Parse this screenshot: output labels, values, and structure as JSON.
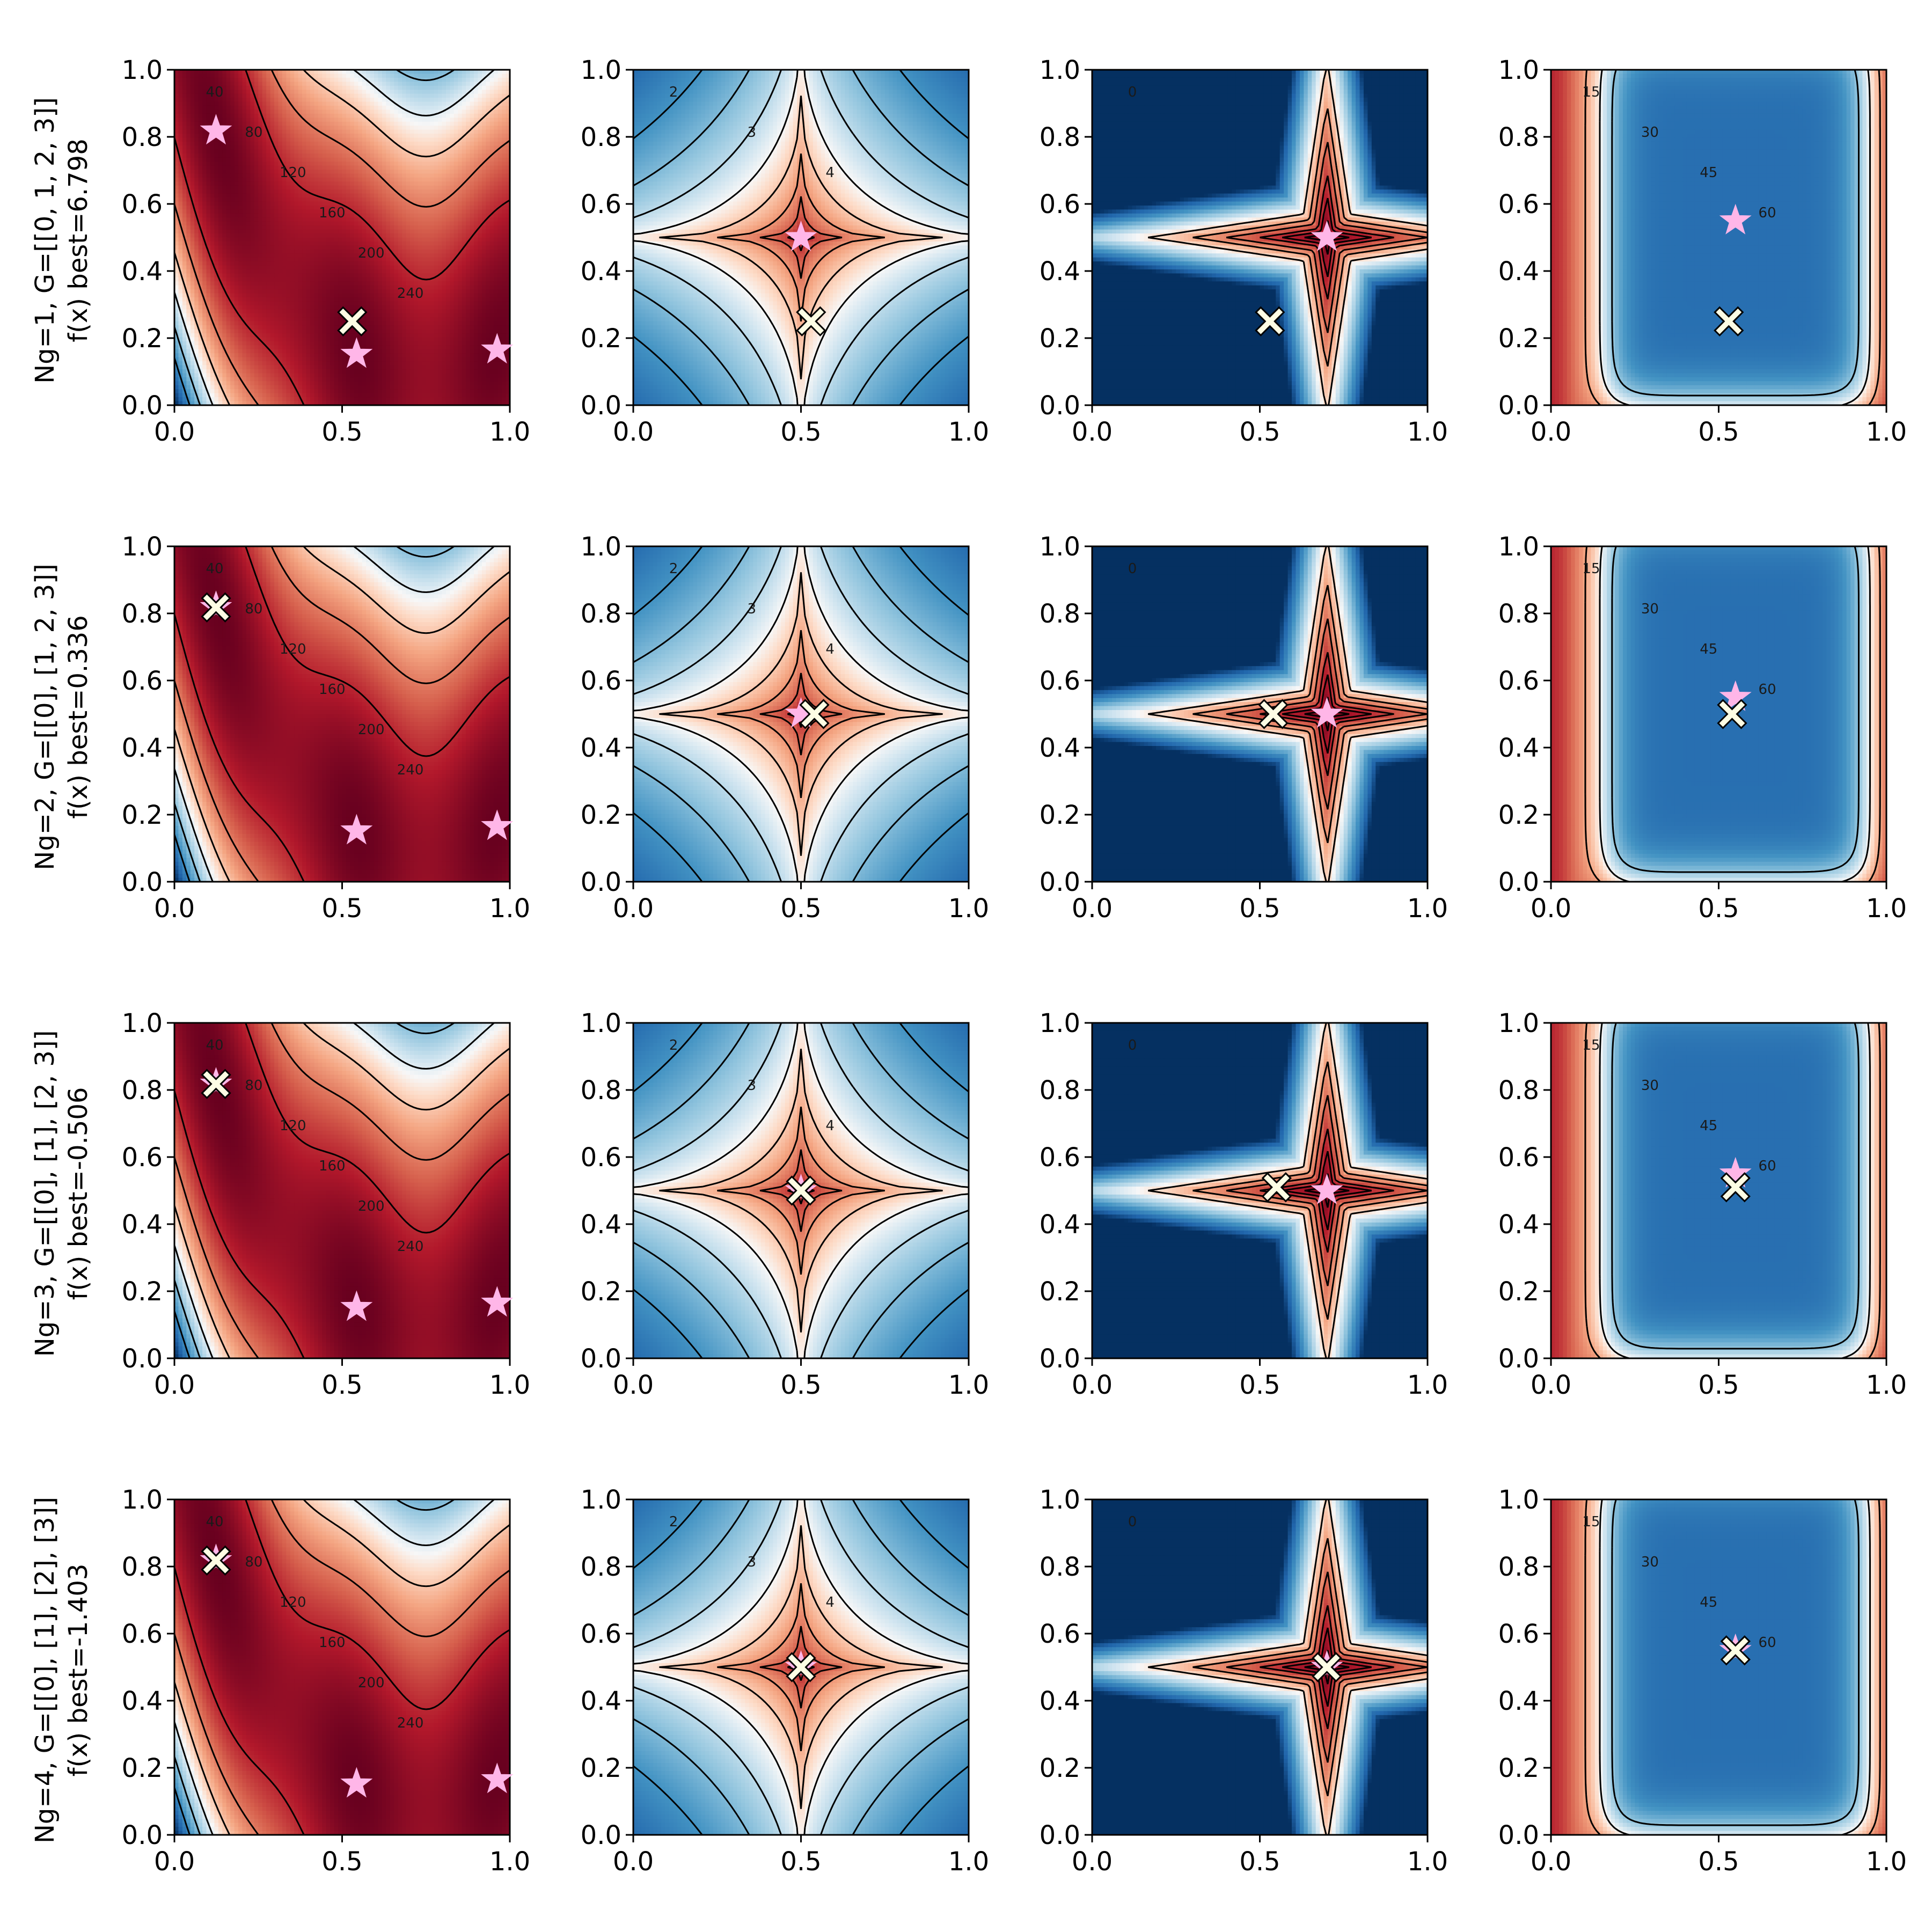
{
  "figure": {
    "row_labels": [
      {
        "line1": "Ng=1, G=[[0, 1, 2, 3]]",
        "line2": "f(x) best=6.798"
      },
      {
        "line1": "Ng=2, G=[[0], [1, 2, 3]]",
        "line2": "f(x) best=0.336"
      },
      {
        "line1": "Ng=3, G=[[0], [1], [2, 3]]",
        "line2": "f(x) best=-0.506"
      },
      {
        "line1": "Ng=4, G=[[0], [1], [2], [3]]",
        "line2": "f(x) best=-1.403"
      }
    ],
    "colors": {
      "low_value": "#053061",
      "mid_value": "#f7f7f7",
      "high_value": "#67001f",
      "contour_line": "#000000",
      "star_marker": "#ffb6e8",
      "cross_marker": "#fdfde4",
      "cross_edge": "#000000"
    },
    "colormap": "RdBu (reversed)",
    "marker_names": {
      "optimum": "star-icon",
      "best_found": "cross-icon"
    }
  },
  "chart_data": [
    {
      "type": "heatmap",
      "row": 1,
      "col": 1,
      "function": "f1",
      "xlim": [
        0,
        1
      ],
      "ylim": [
        0,
        1
      ],
      "x_ticks": [
        "0.0",
        "0.5",
        "1.0"
      ],
      "y_ticks": [
        "0.0",
        "0.2",
        "0.4",
        "0.6",
        "0.8",
        "1.0"
      ],
      "contour_labels": [
        "40",
        "80",
        "120",
        "160",
        "200",
        "240"
      ],
      "optima": [
        {
          "x": 0.124,
          "y": 0.818
        },
        {
          "x": 0.543,
          "y": 0.152
        },
        {
          "x": 0.962,
          "y": 0.165
        }
      ],
      "best": {
        "x": 0.53,
        "y": 0.25
      }
    },
    {
      "type": "heatmap",
      "row": 1,
      "col": 2,
      "function": "f2",
      "xlim": [
        0,
        1
      ],
      "ylim": [
        0,
        1
      ],
      "x_ticks": [
        "0.0",
        "0.5",
        "1.0"
      ],
      "y_ticks": [
        "0.0",
        "0.2",
        "0.4",
        "0.6",
        "0.8",
        "1.0"
      ],
      "contour_labels": [
        "2",
        "3",
        "4"
      ],
      "optima": [
        {
          "x": 0.5,
          "y": 0.5
        }
      ],
      "best": {
        "x": 0.53,
        "y": 0.25
      }
    },
    {
      "type": "heatmap",
      "row": 1,
      "col": 3,
      "function": "f3",
      "xlim": [
        0,
        1
      ],
      "ylim": [
        0,
        1
      ],
      "x_ticks": [
        "0.0",
        "0.5",
        "1.0"
      ],
      "y_ticks": [
        "0.0",
        "0.2",
        "0.4",
        "0.6",
        "0.8",
        "1.0"
      ],
      "contour_labels": [
        "0"
      ],
      "optima": [
        {
          "x": 0.7,
          "y": 0.5
        }
      ],
      "best": {
        "x": 0.53,
        "y": 0.25
      }
    },
    {
      "type": "heatmap",
      "row": 1,
      "col": 4,
      "function": "f4",
      "xlim": [
        0,
        1
      ],
      "ylim": [
        0,
        1
      ],
      "x_ticks": [
        "0.0",
        "0.5",
        "1.0"
      ],
      "y_ticks": [
        "0.0",
        "0.2",
        "0.4",
        "0.6",
        "0.8",
        "1.0"
      ],
      "contour_labels": [
        "15",
        "30",
        "45",
        "60"
      ],
      "optima": [
        {
          "x": 0.55,
          "y": 0.55
        }
      ],
      "best": {
        "x": 0.53,
        "y": 0.25
      }
    },
    {
      "type": "heatmap",
      "row": 2,
      "col": 1,
      "function": "f1",
      "xlim": [
        0,
        1
      ],
      "ylim": [
        0,
        1
      ],
      "x_ticks": [
        "0.0",
        "0.5",
        "1.0"
      ],
      "y_ticks": [
        "0.0",
        "0.2",
        "0.4",
        "0.6",
        "0.8",
        "1.0"
      ],
      "contour_labels": [
        "40",
        "80",
        "120",
        "160",
        "200",
        "240"
      ],
      "optima": [
        {
          "x": 0.124,
          "y": 0.818
        },
        {
          "x": 0.543,
          "y": 0.152
        },
        {
          "x": 0.962,
          "y": 0.165
        }
      ],
      "best": {
        "x": 0.124,
        "y": 0.818
      }
    },
    {
      "type": "heatmap",
      "row": 2,
      "col": 2,
      "function": "f2",
      "xlim": [
        0,
        1
      ],
      "ylim": [
        0,
        1
      ],
      "x_ticks": [
        "0.0",
        "0.5",
        "1.0"
      ],
      "y_ticks": [
        "0.0",
        "0.2",
        "0.4",
        "0.6",
        "0.8",
        "1.0"
      ],
      "contour_labels": [
        "2",
        "3",
        "4"
      ],
      "optima": [
        {
          "x": 0.5,
          "y": 0.5
        }
      ],
      "best": {
        "x": 0.54,
        "y": 0.5
      }
    },
    {
      "type": "heatmap",
      "row": 2,
      "col": 3,
      "function": "f3",
      "xlim": [
        0,
        1
      ],
      "ylim": [
        0,
        1
      ],
      "x_ticks": [
        "0.0",
        "0.5",
        "1.0"
      ],
      "y_ticks": [
        "0.0",
        "0.2",
        "0.4",
        "0.6",
        "0.8",
        "1.0"
      ],
      "contour_labels": [
        "0"
      ],
      "optima": [
        {
          "x": 0.7,
          "y": 0.5
        }
      ],
      "best": {
        "x": 0.54,
        "y": 0.5
      }
    },
    {
      "type": "heatmap",
      "row": 2,
      "col": 4,
      "function": "f4",
      "xlim": [
        0,
        1
      ],
      "ylim": [
        0,
        1
      ],
      "x_ticks": [
        "0.0",
        "0.5",
        "1.0"
      ],
      "y_ticks": [
        "0.0",
        "0.2",
        "0.4",
        "0.6",
        "0.8",
        "1.0"
      ],
      "contour_labels": [
        "15",
        "30",
        "45",
        "60"
      ],
      "optima": [
        {
          "x": 0.55,
          "y": 0.55
        }
      ],
      "best": {
        "x": 0.54,
        "y": 0.5
      }
    },
    {
      "type": "heatmap",
      "row": 3,
      "col": 1,
      "function": "f1",
      "xlim": [
        0,
        1
      ],
      "ylim": [
        0,
        1
      ],
      "x_ticks": [
        "0.0",
        "0.5",
        "1.0"
      ],
      "y_ticks": [
        "0.0",
        "0.2",
        "0.4",
        "0.6",
        "0.8",
        "1.0"
      ],
      "contour_labels": [
        "40",
        "80",
        "120",
        "160",
        "200",
        "240"
      ],
      "optima": [
        {
          "x": 0.124,
          "y": 0.818
        },
        {
          "x": 0.543,
          "y": 0.152
        },
        {
          "x": 0.962,
          "y": 0.165
        }
      ],
      "best": {
        "x": 0.124,
        "y": 0.818
      }
    },
    {
      "type": "heatmap",
      "row": 3,
      "col": 2,
      "function": "f2",
      "xlim": [
        0,
        1
      ],
      "ylim": [
        0,
        1
      ],
      "x_ticks": [
        "0.0",
        "0.5",
        "1.0"
      ],
      "y_ticks": [
        "0.0",
        "0.2",
        "0.4",
        "0.6",
        "0.8",
        "1.0"
      ],
      "contour_labels": [
        "2",
        "3",
        "4"
      ],
      "optima": [
        {
          "x": 0.5,
          "y": 0.5
        }
      ],
      "best": {
        "x": 0.5,
        "y": 0.5
      }
    },
    {
      "type": "heatmap",
      "row": 3,
      "col": 3,
      "function": "f3",
      "xlim": [
        0,
        1
      ],
      "ylim": [
        0,
        1
      ],
      "x_ticks": [
        "0.0",
        "0.5",
        "1.0"
      ],
      "y_ticks": [
        "0.0",
        "0.2",
        "0.4",
        "0.6",
        "0.8",
        "1.0"
      ],
      "contour_labels": [
        "0"
      ],
      "optima": [
        {
          "x": 0.7,
          "y": 0.5
        }
      ],
      "best": {
        "x": 0.55,
        "y": 0.51
      }
    },
    {
      "type": "heatmap",
      "row": 3,
      "col": 4,
      "function": "f4",
      "xlim": [
        0,
        1
      ],
      "ylim": [
        0,
        1
      ],
      "x_ticks": [
        "0.0",
        "0.5",
        "1.0"
      ],
      "y_ticks": [
        "0.0",
        "0.2",
        "0.4",
        "0.6",
        "0.8",
        "1.0"
      ],
      "contour_labels": [
        "15",
        "30",
        "45",
        "60"
      ],
      "optima": [
        {
          "x": 0.55,
          "y": 0.55
        }
      ],
      "best": {
        "x": 0.55,
        "y": 0.51
      }
    },
    {
      "type": "heatmap",
      "row": 4,
      "col": 1,
      "function": "f1",
      "xlim": [
        0,
        1
      ],
      "ylim": [
        0,
        1
      ],
      "x_ticks": [
        "0.0",
        "0.5",
        "1.0"
      ],
      "y_ticks": [
        "0.0",
        "0.2",
        "0.4",
        "0.6",
        "0.8",
        "1.0"
      ],
      "contour_labels": [
        "40",
        "80",
        "120",
        "160",
        "200",
        "240"
      ],
      "optima": [
        {
          "x": 0.124,
          "y": 0.818
        },
        {
          "x": 0.543,
          "y": 0.152
        },
        {
          "x": 0.962,
          "y": 0.165
        }
      ],
      "best": {
        "x": 0.124,
        "y": 0.818
      }
    },
    {
      "type": "heatmap",
      "row": 4,
      "col": 2,
      "function": "f2",
      "xlim": [
        0,
        1
      ],
      "ylim": [
        0,
        1
      ],
      "x_ticks": [
        "0.0",
        "0.5",
        "1.0"
      ],
      "y_ticks": [
        "0.0",
        "0.2",
        "0.4",
        "0.6",
        "0.8",
        "1.0"
      ],
      "contour_labels": [
        "2",
        "3",
        "4"
      ],
      "optima": [
        {
          "x": 0.5,
          "y": 0.5
        }
      ],
      "best": {
        "x": 0.5,
        "y": 0.5
      }
    },
    {
      "type": "heatmap",
      "row": 4,
      "col": 3,
      "function": "f3",
      "xlim": [
        0,
        1
      ],
      "ylim": [
        0,
        1
      ],
      "x_ticks": [
        "0.0",
        "0.5",
        "1.0"
      ],
      "y_ticks": [
        "0.0",
        "0.2",
        "0.4",
        "0.6",
        "0.8",
        "1.0"
      ],
      "contour_labels": [
        "0"
      ],
      "optima": [
        {
          "x": 0.7,
          "y": 0.5
        }
      ],
      "best": {
        "x": 0.7,
        "y": 0.5
      }
    },
    {
      "type": "heatmap",
      "row": 4,
      "col": 4,
      "function": "f4",
      "xlim": [
        0,
        1
      ],
      "ylim": [
        0,
        1
      ],
      "x_ticks": [
        "0.0",
        "0.5",
        "1.0"
      ],
      "y_ticks": [
        "0.0",
        "0.2",
        "0.4",
        "0.6",
        "0.8",
        "1.0"
      ],
      "contour_labels": [
        "15",
        "30",
        "45",
        "60"
      ],
      "optima": [
        {
          "x": 0.55,
          "y": 0.55
        }
      ],
      "best": {
        "x": 0.55,
        "y": 0.55
      }
    }
  ]
}
